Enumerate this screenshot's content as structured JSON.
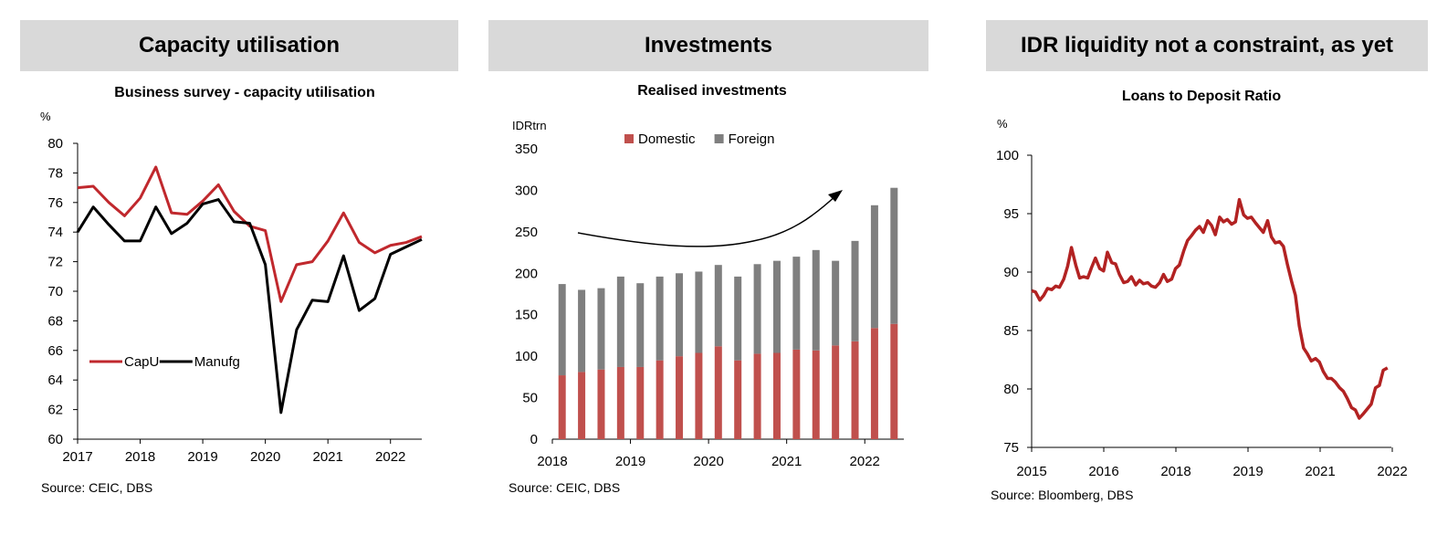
{
  "panels": [
    {
      "header": "Capacity utilisation"
    },
    {
      "header": "Investments"
    },
    {
      "header": "IDR liquidity not a constraint, as yet"
    }
  ],
  "chart_data": [
    {
      "type": "line",
      "title": "Business survey - capacity utilisation",
      "ylabel": "%",
      "source": "Source: CEIC, DBS",
      "ylim": [
        60,
        80
      ],
      "yticks": [
        60,
        62,
        64,
        66,
        68,
        70,
        72,
        74,
        76,
        78,
        80
      ],
      "xticks": [
        "2017",
        "2018",
        "2019",
        "2020",
        "2021",
        "2022"
      ],
      "x": [
        2017.0,
        2017.25,
        2017.5,
        2017.75,
        2018.0,
        2018.25,
        2018.5,
        2018.75,
        2019.0,
        2019.25,
        2019.5,
        2019.75,
        2020.0,
        2020.25,
        2020.5,
        2020.75,
        2021.0,
        2021.25,
        2021.5,
        2021.75,
        2022.0,
        2022.25,
        2022.5
      ],
      "legend_position": "lower-left",
      "grid": false,
      "series": [
        {
          "name": "CapU",
          "color": "#c0282d",
          "values": [
            77.0,
            77.1,
            76.0,
            75.1,
            76.3,
            78.4,
            75.3,
            75.2,
            76.1,
            77.2,
            75.4,
            74.4,
            74.1,
            69.3,
            71.8,
            72.0,
            73.4,
            75.3,
            73.3,
            72.6,
            73.1,
            73.3,
            73.7
          ]
        },
        {
          "name": "Manufg",
          "color": "#000000",
          "values": [
            74.0,
            75.7,
            74.5,
            73.4,
            73.4,
            75.7,
            73.9,
            74.6,
            75.9,
            76.2,
            74.7,
            74.6,
            71.8,
            61.8,
            67.4,
            69.4,
            69.3,
            72.4,
            68.7,
            69.5,
            72.5,
            73.0,
            73.5
          ]
        }
      ]
    },
    {
      "type": "bar",
      "stacked": true,
      "title": "Realised investments",
      "ylabel": "IDRtrn",
      "source": "Source: CEIC, DBS",
      "ylim": [
        0,
        350
      ],
      "yticks": [
        0,
        50,
        100,
        150,
        200,
        250,
        300,
        350
      ],
      "xticks": [
        "2018",
        "2019",
        "2020",
        "2021",
        "2022"
      ],
      "categories": [
        "2018Q1",
        "2018Q2",
        "2018Q3",
        "2018Q4",
        "2019Q1",
        "2019Q2",
        "2019Q3",
        "2019Q4",
        "2020Q1",
        "2020Q2",
        "2020Q3",
        "2020Q4",
        "2021Q1",
        "2021Q2",
        "2021Q3",
        "2021Q4",
        "2022Q1",
        "2022Q2"
      ],
      "legend_position": "top",
      "grid": false,
      "annotation": "upward trend arrow",
      "series": [
        {
          "name": "Domestic",
          "color": "#c0504d",
          "values": [
            77,
            81,
            84,
            87,
            87,
            95,
            100,
            104,
            112,
            95,
            103,
            104,
            108,
            107,
            113,
            118,
            134,
            139
          ]
        },
        {
          "name": "Foreign",
          "color": "#7f7f7f",
          "values": [
            110,
            99,
            98,
            109,
            101,
            101,
            100,
            98,
            98,
            101,
            108,
            111,
            112,
            121,
            102,
            121,
            148,
            164
          ]
        }
      ]
    },
    {
      "type": "line",
      "title": "Loans to Deposit Ratio",
      "ylabel": "%",
      "source": "Source: Bloomberg, DBS",
      "ylim": [
        75,
        100
      ],
      "yticks": [
        75,
        80,
        85,
        90,
        95,
        100
      ],
      "xticks": [
        "2015",
        "2016",
        "2018",
        "2019",
        "2021",
        "2022"
      ],
      "legend_position": "none",
      "grid": false,
      "series": [
        {
          "name": "",
          "color": "#b22222",
          "points": [
            [
              2015.0,
              88.4
            ],
            [
              2015.08,
              88.3
            ],
            [
              2015.17,
              87.6
            ],
            [
              2015.25,
              88.0
            ],
            [
              2015.33,
              88.6
            ],
            [
              2015.42,
              88.5
            ],
            [
              2015.5,
              88.8
            ],
            [
              2015.58,
              88.7
            ],
            [
              2015.67,
              89.4
            ],
            [
              2015.75,
              90.5
            ],
            [
              2015.83,
              92.1
            ],
            [
              2015.92,
              90.6
            ],
            [
              2016.0,
              89.5
            ],
            [
              2016.08,
              89.6
            ],
            [
              2016.17,
              89.5
            ],
            [
              2016.25,
              90.4
            ],
            [
              2016.33,
              91.2
            ],
            [
              2016.42,
              90.3
            ],
            [
              2016.5,
              90.1
            ],
            [
              2016.58,
              91.7
            ],
            [
              2016.67,
              90.8
            ],
            [
              2016.75,
              90.7
            ],
            [
              2016.83,
              89.8
            ],
            [
              2016.92,
              89.1
            ],
            [
              2017.0,
              89.2
            ],
            [
              2017.08,
              89.6
            ],
            [
              2017.17,
              88.9
            ],
            [
              2017.25,
              89.3
            ],
            [
              2017.33,
              89.0
            ],
            [
              2017.42,
              89.1
            ],
            [
              2017.5,
              88.8
            ],
            [
              2017.58,
              88.7
            ],
            [
              2017.67,
              89.1
            ],
            [
              2017.75,
              89.8
            ],
            [
              2017.83,
              89.2
            ],
            [
              2017.92,
              89.4
            ],
            [
              2018.0,
              90.3
            ],
            [
              2018.08,
              90.6
            ],
            [
              2018.17,
              91.8
            ],
            [
              2018.25,
              92.7
            ],
            [
              2018.33,
              93.1
            ],
            [
              2018.42,
              93.6
            ],
            [
              2018.5,
              93.9
            ],
            [
              2018.58,
              93.4
            ],
            [
              2018.67,
              94.4
            ],
            [
              2018.75,
              94.0
            ],
            [
              2018.83,
              93.2
            ],
            [
              2018.92,
              94.7
            ],
            [
              2019.0,
              94.3
            ],
            [
              2019.08,
              94.5
            ],
            [
              2019.17,
              94.1
            ],
            [
              2019.25,
              94.3
            ],
            [
              2019.33,
              96.2
            ],
            [
              2019.42,
              94.9
            ],
            [
              2019.5,
              94.6
            ],
            [
              2019.58,
              94.7
            ],
            [
              2019.67,
              94.2
            ],
            [
              2019.75,
              93.8
            ],
            [
              2019.83,
              93.4
            ],
            [
              2019.92,
              94.4
            ],
            [
              2020.0,
              93.0
            ],
            [
              2020.08,
              92.5
            ],
            [
              2020.17,
              92.6
            ],
            [
              2020.25,
              92.2
            ],
            [
              2020.33,
              90.7
            ],
            [
              2020.42,
              89.2
            ],
            [
              2020.5,
              88.0
            ],
            [
              2020.58,
              85.4
            ],
            [
              2020.67,
              83.5
            ],
            [
              2020.75,
              83.0
            ],
            [
              2020.83,
              82.4
            ],
            [
              2020.92,
              82.6
            ],
            [
              2021.0,
              82.3
            ],
            [
              2021.08,
              81.5
            ],
            [
              2021.17,
              80.9
            ],
            [
              2021.25,
              80.9
            ],
            [
              2021.33,
              80.6
            ],
            [
              2021.42,
              80.1
            ],
            [
              2021.5,
              79.8
            ],
            [
              2021.58,
              79.2
            ],
            [
              2021.67,
              78.4
            ],
            [
              2021.75,
              78.2
            ],
            [
              2021.83,
              77.5
            ],
            [
              2021.92,
              77.9
            ],
            [
              2022.0,
              78.3
            ],
            [
              2022.08,
              78.7
            ],
            [
              2022.17,
              80.1
            ],
            [
              2022.25,
              80.3
            ],
            [
              2022.33,
              81.6
            ],
            [
              2022.42,
              81.8
            ]
          ]
        }
      ]
    }
  ]
}
